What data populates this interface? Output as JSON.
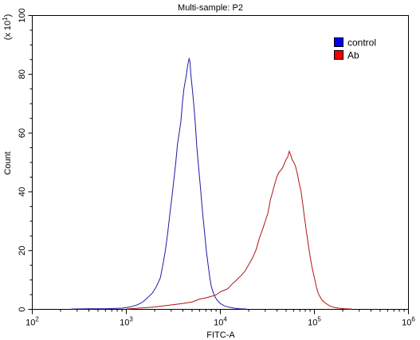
{
  "chart_data": {
    "type": "line",
    "title": "Multi-sample: P2",
    "xlabel": "FITC-A",
    "ylabel": "Count",
    "y_multiplier": "(x 10",
    "y_multiplier_exp": "1",
    "y_multiplier_close": ")",
    "x_scale": "log",
    "xlim": [
      100,
      1000000
    ],
    "ylim": [
      0,
      100
    ],
    "x_ticks": [
      {
        "base": "10",
        "exp": "2",
        "value": 100
      },
      {
        "base": "10",
        "exp": "3",
        "value": 1000
      },
      {
        "base": "10",
        "exp": "4",
        "value": 10000
      },
      {
        "base": "10",
        "exp": "5",
        "value": 100000
      },
      {
        "base": "10",
        "exp": "6",
        "value": 1000000
      }
    ],
    "y_ticks": [
      "0",
      "20",
      "40",
      "60",
      "80",
      "100"
    ],
    "grid": false,
    "legend_position": "top-right",
    "series": [
      {
        "name": "control",
        "color": "#1a1aa8",
        "legend_color": "#0000ee",
        "points": [
          [
            260,
            0.1
          ],
          [
            400,
            0.2
          ],
          [
            600,
            0.2
          ],
          [
            900,
            0.4
          ],
          [
            1100,
            0.8
          ],
          [
            1300,
            1.5
          ],
          [
            1500,
            2.5
          ],
          [
            1700,
            3.8
          ],
          [
            1900,
            5.5
          ],
          [
            2100,
            8
          ],
          [
            2300,
            11
          ],
          [
            2450,
            15
          ],
          [
            2600,
            20
          ],
          [
            2750,
            26
          ],
          [
            2900,
            32
          ],
          [
            3050,
            38
          ],
          [
            3200,
            44
          ],
          [
            3350,
            50
          ],
          [
            3500,
            56
          ],
          [
            3650,
            60
          ],
          [
            3800,
            64
          ],
          [
            3950,
            70
          ],
          [
            4100,
            75
          ],
          [
            4250,
            78
          ],
          [
            4350,
            80
          ],
          [
            4450,
            82
          ],
          [
            4550,
            84
          ],
          [
            4650,
            85.5
          ],
          [
            4750,
            84
          ],
          [
            4850,
            80
          ],
          [
            5000,
            76
          ],
          [
            5150,
            72
          ],
          [
            5300,
            67
          ],
          [
            5450,
            62
          ],
          [
            5600,
            56
          ],
          [
            5800,
            50
          ],
          [
            6000,
            45
          ],
          [
            6200,
            40
          ],
          [
            6400,
            35
          ],
          [
            6600,
            30
          ],
          [
            6850,
            25
          ],
          [
            7100,
            20
          ],
          [
            7400,
            15
          ],
          [
            7700,
            11
          ],
          [
            8000,
            8
          ],
          [
            8400,
            6
          ],
          [
            8800,
            4
          ],
          [
            9300,
            3
          ],
          [
            10000,
            2
          ],
          [
            11000,
            1.2
          ],
          [
            12500,
            0.7
          ],
          [
            14000,
            0.4
          ],
          [
            16000,
            0.2
          ],
          [
            19000,
            0.1
          ]
        ]
      },
      {
        "name": "Ab",
        "color": "#b01414",
        "legend_color": "#ee0000",
        "points": [
          [
            1000,
            0.1
          ],
          [
            1500,
            0.5
          ],
          [
            2000,
            0.8
          ],
          [
            2500,
            1.2
          ],
          [
            3000,
            1.5
          ],
          [
            4000,
            2
          ],
          [
            5000,
            2.5
          ],
          [
            6000,
            3.2
          ],
          [
            7000,
            3.8
          ],
          [
            8000,
            4.5
          ],
          [
            9000,
            5.2
          ],
          [
            10000,
            5.8
          ],
          [
            11000,
            6.5
          ],
          [
            12000,
            7.2
          ],
          [
            13500,
            8.5
          ],
          [
            15000,
            10
          ],
          [
            16500,
            11.5
          ],
          [
            18000,
            13
          ],
          [
            20000,
            15
          ],
          [
            22000,
            17.5
          ],
          [
            24000,
            20.5
          ],
          [
            26000,
            24
          ],
          [
            28000,
            27
          ],
          [
            30000,
            30
          ],
          [
            32000,
            33
          ],
          [
            34000,
            37
          ],
          [
            36000,
            40
          ],
          [
            38000,
            43
          ],
          [
            40000,
            45
          ],
          [
            42000,
            46.5
          ],
          [
            44000,
            47.5
          ],
          [
            46000,
            48.5
          ],
          [
            48000,
            49.5
          ],
          [
            50000,
            51
          ],
          [
            52000,
            52
          ],
          [
            54000,
            53.5
          ],
          [
            56000,
            52.5
          ],
          [
            58000,
            51
          ],
          [
            60000,
            50.5
          ],
          [
            63000,
            48.5
          ],
          [
            66000,
            46
          ],
          [
            69000,
            43
          ],
          [
            72000,
            40
          ],
          [
            75000,
            36
          ],
          [
            78000,
            32
          ],
          [
            82000,
            27
          ],
          [
            86000,
            22
          ],
          [
            90000,
            18
          ],
          [
            95000,
            14
          ],
          [
            100000,
            10.5
          ],
          [
            105000,
            7.5
          ],
          [
            110000,
            5.5
          ],
          [
            120000,
            3.5
          ],
          [
            130000,
            2.2
          ],
          [
            145000,
            1.2
          ],
          [
            160000,
            0.7
          ],
          [
            180000,
            0.4
          ],
          [
            210000,
            0.2
          ],
          [
            250000,
            0.1
          ]
        ]
      }
    ]
  }
}
